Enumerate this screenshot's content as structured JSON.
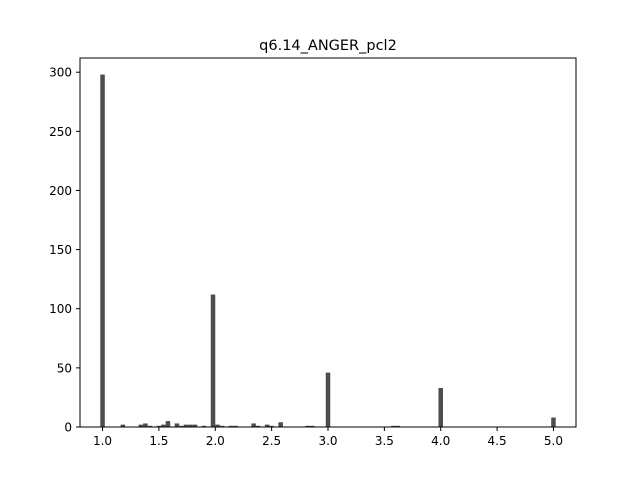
{
  "chart_data": {
    "type": "bar",
    "title": "q6.14_ANGER_pcl2",
    "xlabel": "",
    "ylabel": "",
    "xlim": [
      0.8,
      5.2
    ],
    "ylim": [
      0,
      312
    ],
    "bin_width": 0.04,
    "x_ticks": [
      1.0,
      1.5,
      2.0,
      2.5,
      3.0,
      3.5,
      4.0,
      4.5,
      5.0
    ],
    "x_tick_labels": [
      "1.0",
      "1.5",
      "2.0",
      "2.5",
      "3.0",
      "3.5",
      "4.0",
      "4.5",
      "5.0"
    ],
    "y_ticks": [
      0,
      50,
      100,
      150,
      200,
      250,
      300
    ],
    "y_tick_labels": [
      "0",
      "50",
      "100",
      "150",
      "200",
      "250",
      "300"
    ],
    "grid": false,
    "legend": "none",
    "bar_color": "#4d4d4d",
    "x": [
      1.0,
      1.18,
      1.34,
      1.38,
      1.42,
      1.5,
      1.54,
      1.58,
      1.66,
      1.7,
      1.74,
      1.78,
      1.82,
      1.9,
      1.98,
      2.02,
      2.06,
      2.14,
      2.18,
      2.34,
      2.38,
      2.46,
      2.5,
      2.58,
      2.82,
      2.86,
      3.0,
      3.58,
      3.62,
      4.0,
      5.0
    ],
    "values": [
      298,
      2,
      2,
      3,
      1,
      1,
      2,
      5,
      3,
      1,
      2,
      2,
      2,
      1,
      112,
      2,
      1,
      1,
      1,
      3,
      1,
      2,
      1,
      4,
      1,
      1,
      46,
      1,
      1,
      33,
      8
    ]
  }
}
